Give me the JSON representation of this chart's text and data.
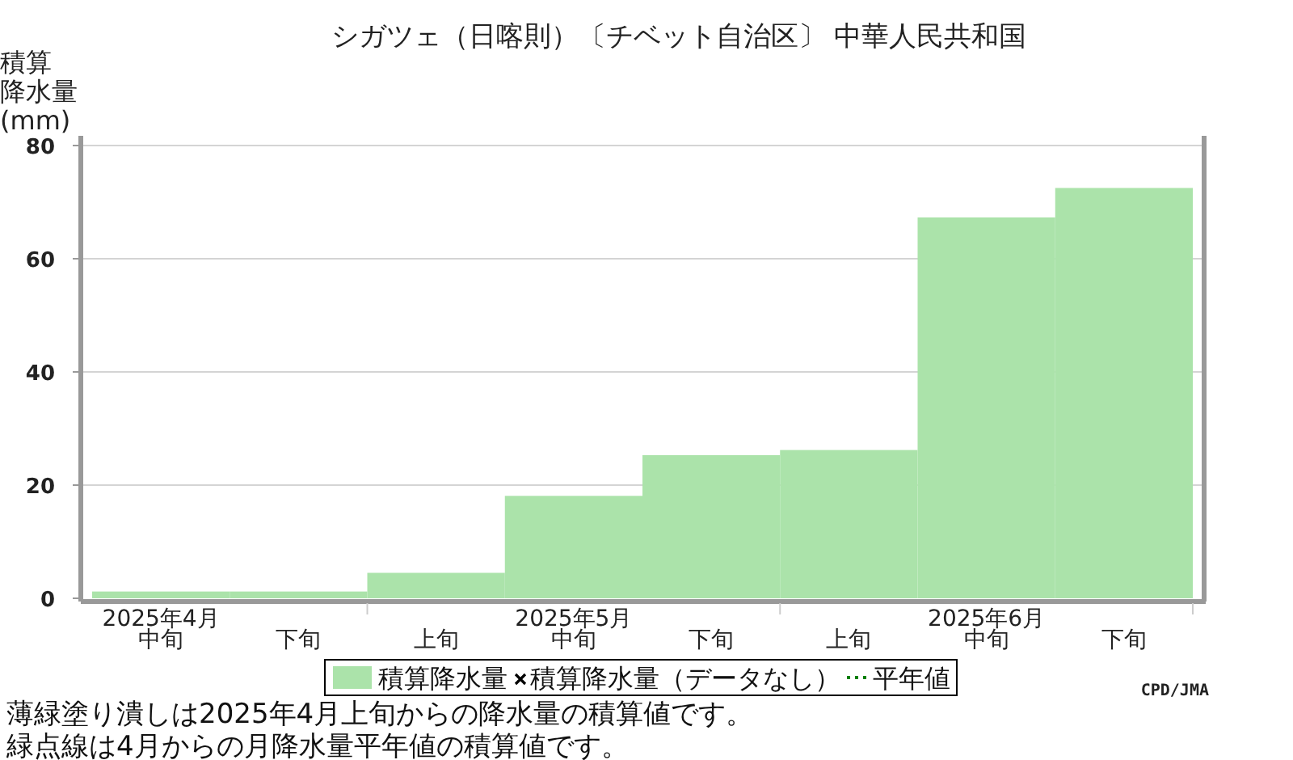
{
  "chart_data": {
    "type": "bar",
    "title": "シガツェ（日喀則）〔チベット自治区〕 中華人民共和国",
    "ylabel": "積算降水量(mm)",
    "categories": [
      "中旬",
      "下旬",
      "上旬",
      "中旬",
      "下旬",
      "上旬",
      "中旬",
      "下旬"
    ],
    "series": [
      {
        "name": "積算降水量",
        "color": "#abe3aa",
        "values": [
          1.2,
          1.2,
          4.5,
          18.1,
          25.3,
          26.2,
          67.3,
          72.5
        ]
      },
      {
        "name": "積算降水量（データなし）",
        "type": "scatter",
        "marker": "cross",
        "color": "#000000",
        "values": [
          null,
          null,
          null,
          null,
          null,
          null,
          null,
          null
        ]
      },
      {
        "name": "平年値",
        "type": "line",
        "line_style": "dotted",
        "color": "#008000",
        "values": [
          null,
          null,
          null,
          null,
          null,
          null,
          null,
          null
        ]
      }
    ],
    "ylim": [
      0,
      80
    ],
    "yticks": [
      0,
      20,
      40,
      60,
      80
    ],
    "grid": "y",
    "legend": "bottom",
    "annotations": [
      "2025年4月",
      "2025年5月",
      "2025年6月",
      "CPD/JMA",
      "薄緑塗り潰しは2025年4月上旬からの降水量の積算値です。",
      "緑点線は4月からの月降水量平年値の積算値です。"
    ]
  }
}
